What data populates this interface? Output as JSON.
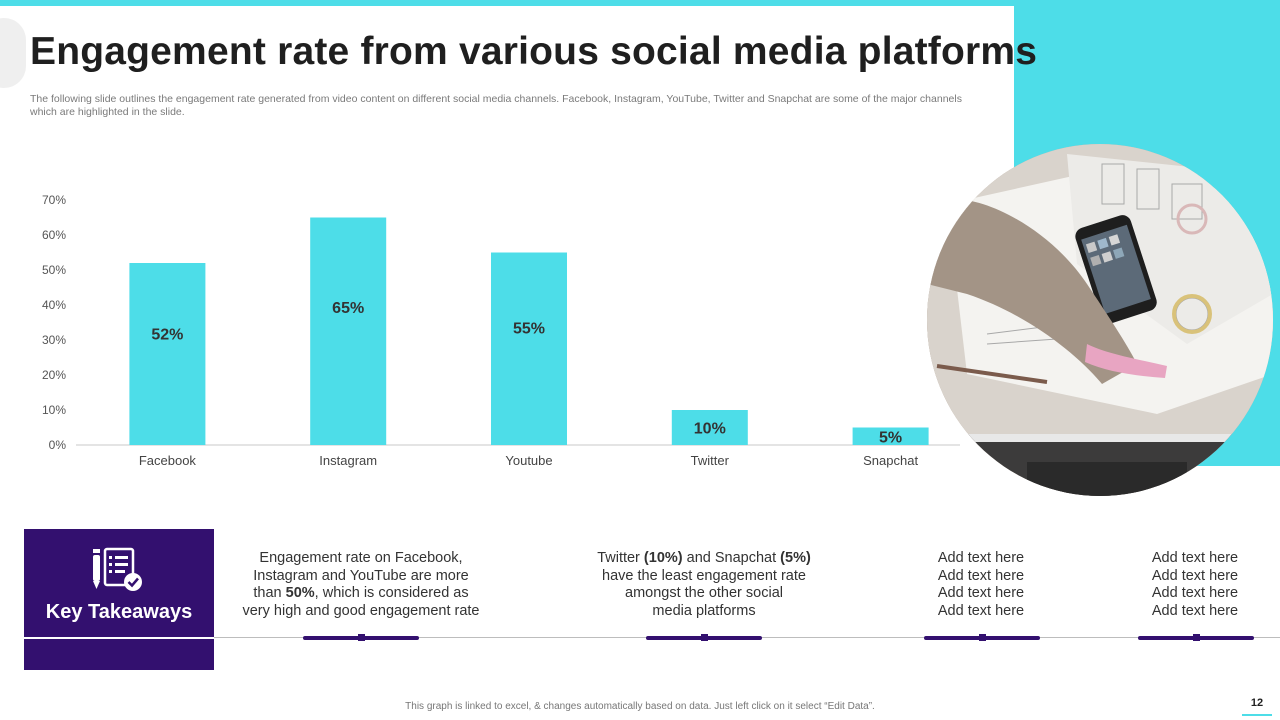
{
  "slide": {
    "title": "Engagement rate from various social media platforms",
    "subtitle": "The following slide outlines the engagement rate generated from video content on different social media channels. Facebook, Instagram, YouTube, Twitter and Snapchat are some of the major channels which are highlighted in the slide.",
    "footer": "This graph is linked to excel, & changes automatically based on data. Just left click on it select “Edit Data”.",
    "page_number": "12",
    "accent_color": "#4ddde8",
    "brand_color": "#33106f"
  },
  "chart_data": {
    "type": "bar",
    "categories": [
      "Facebook",
      "Instagram",
      "Youtube",
      "Twitter",
      "Snapchat"
    ],
    "values": [
      52,
      65,
      55,
      10,
      5
    ],
    "value_labels": [
      "52%",
      "65%",
      "55%",
      "10%",
      "5%"
    ],
    "ylim": [
      0,
      70
    ],
    "y_ticks": [
      "0%",
      "10%",
      "20%",
      "30%",
      "40%",
      "50%",
      "60%",
      "70%"
    ],
    "y_tick_values": [
      0,
      10,
      20,
      30,
      40,
      50,
      60,
      70
    ],
    "bar_color": "#4ddde8",
    "grid": false,
    "title": "",
    "xlabel": "",
    "ylabel": ""
  },
  "takeaways": {
    "heading": "Key Takeaways",
    "icon": "checklist-icon",
    "item1": {
      "line1": "Engagement rate on Facebook,",
      "line2": "Instagram and YouTube are more",
      "line3_pre": "than ",
      "line3_bold": "50%",
      "line3_post": ", which is considered as",
      "line4": "very high and good engagement rate"
    },
    "item2": {
      "l1_pre": "Twitter ",
      "l1_bold1": "(10%)",
      "l1_mid": " and Snapchat ",
      "l1_bold2": "(5%)",
      "line2": "have the least engagement rate",
      "line3": "amongst the other social",
      "line4": "media platforms"
    },
    "item3": [
      "Add text here",
      "Add text here",
      "Add text here",
      "Add text here"
    ],
    "item4": [
      "Add text here",
      "Add text here",
      "Add text here",
      "Add text here"
    ]
  }
}
